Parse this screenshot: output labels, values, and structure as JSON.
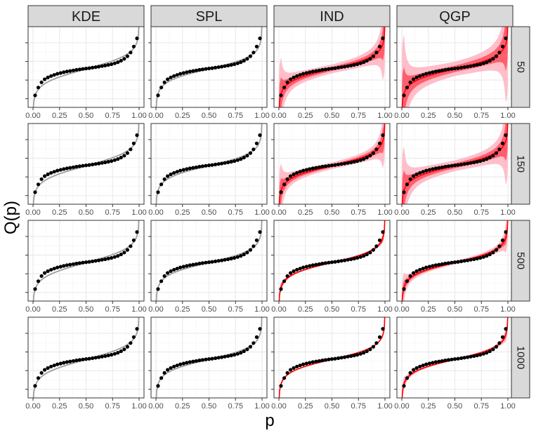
{
  "chart_data": {
    "type": "scatter",
    "layout": "faceted grid",
    "xlabel": "p",
    "ylabel": "Q(p)",
    "column_facets": [
      "KDE",
      "SPL",
      "IND",
      "QGP"
    ],
    "row_facets": [
      "50",
      "150",
      "500",
      "1000"
    ],
    "xlim": [
      0,
      1
    ],
    "x_ticks": [
      0.0,
      0.25,
      0.5,
      0.75,
      1.0
    ],
    "x_tick_labels": [
      "0.00",
      "0.25",
      "0.50",
      "0.75",
      "1.00"
    ],
    "y_tick_labels_shown": false,
    "grid": true,
    "points": {
      "x": [
        0.02,
        0.05,
        0.08,
        0.11,
        0.14,
        0.17,
        0.2,
        0.23,
        0.26,
        0.29,
        0.32,
        0.35,
        0.38,
        0.41,
        0.44,
        0.47,
        0.5,
        0.53,
        0.56,
        0.59,
        0.62,
        0.65,
        0.68,
        0.71,
        0.74,
        0.77,
        0.8,
        0.83,
        0.86,
        0.89,
        0.92,
        0.95,
        0.98
      ],
      "y": [
        0.095,
        0.2,
        0.27,
        0.31,
        0.335,
        0.355,
        0.37,
        0.385,
        0.395,
        0.405,
        0.415,
        0.422,
        0.43,
        0.437,
        0.443,
        0.45,
        0.455,
        0.46,
        0.467,
        0.473,
        0.48,
        0.487,
        0.495,
        0.503,
        0.513,
        0.525,
        0.54,
        0.56,
        0.585,
        0.62,
        0.67,
        0.75,
        0.86
      ],
      "color": "#000000"
    },
    "line_colors": {
      "estimate_kde_spl": "#9e9e9e",
      "estimate_ind_qgp": "#ff0000",
      "band_inner": "#ff4d5e",
      "band_outer": "#ffb3bf"
    },
    "colors": {
      "strip_fill": "#d9d9d9",
      "strip_border": "#333333",
      "panel_border": "#333333",
      "grid_major": "#ebebeb",
      "grid_minor": "#f5f5f5"
    }
  }
}
